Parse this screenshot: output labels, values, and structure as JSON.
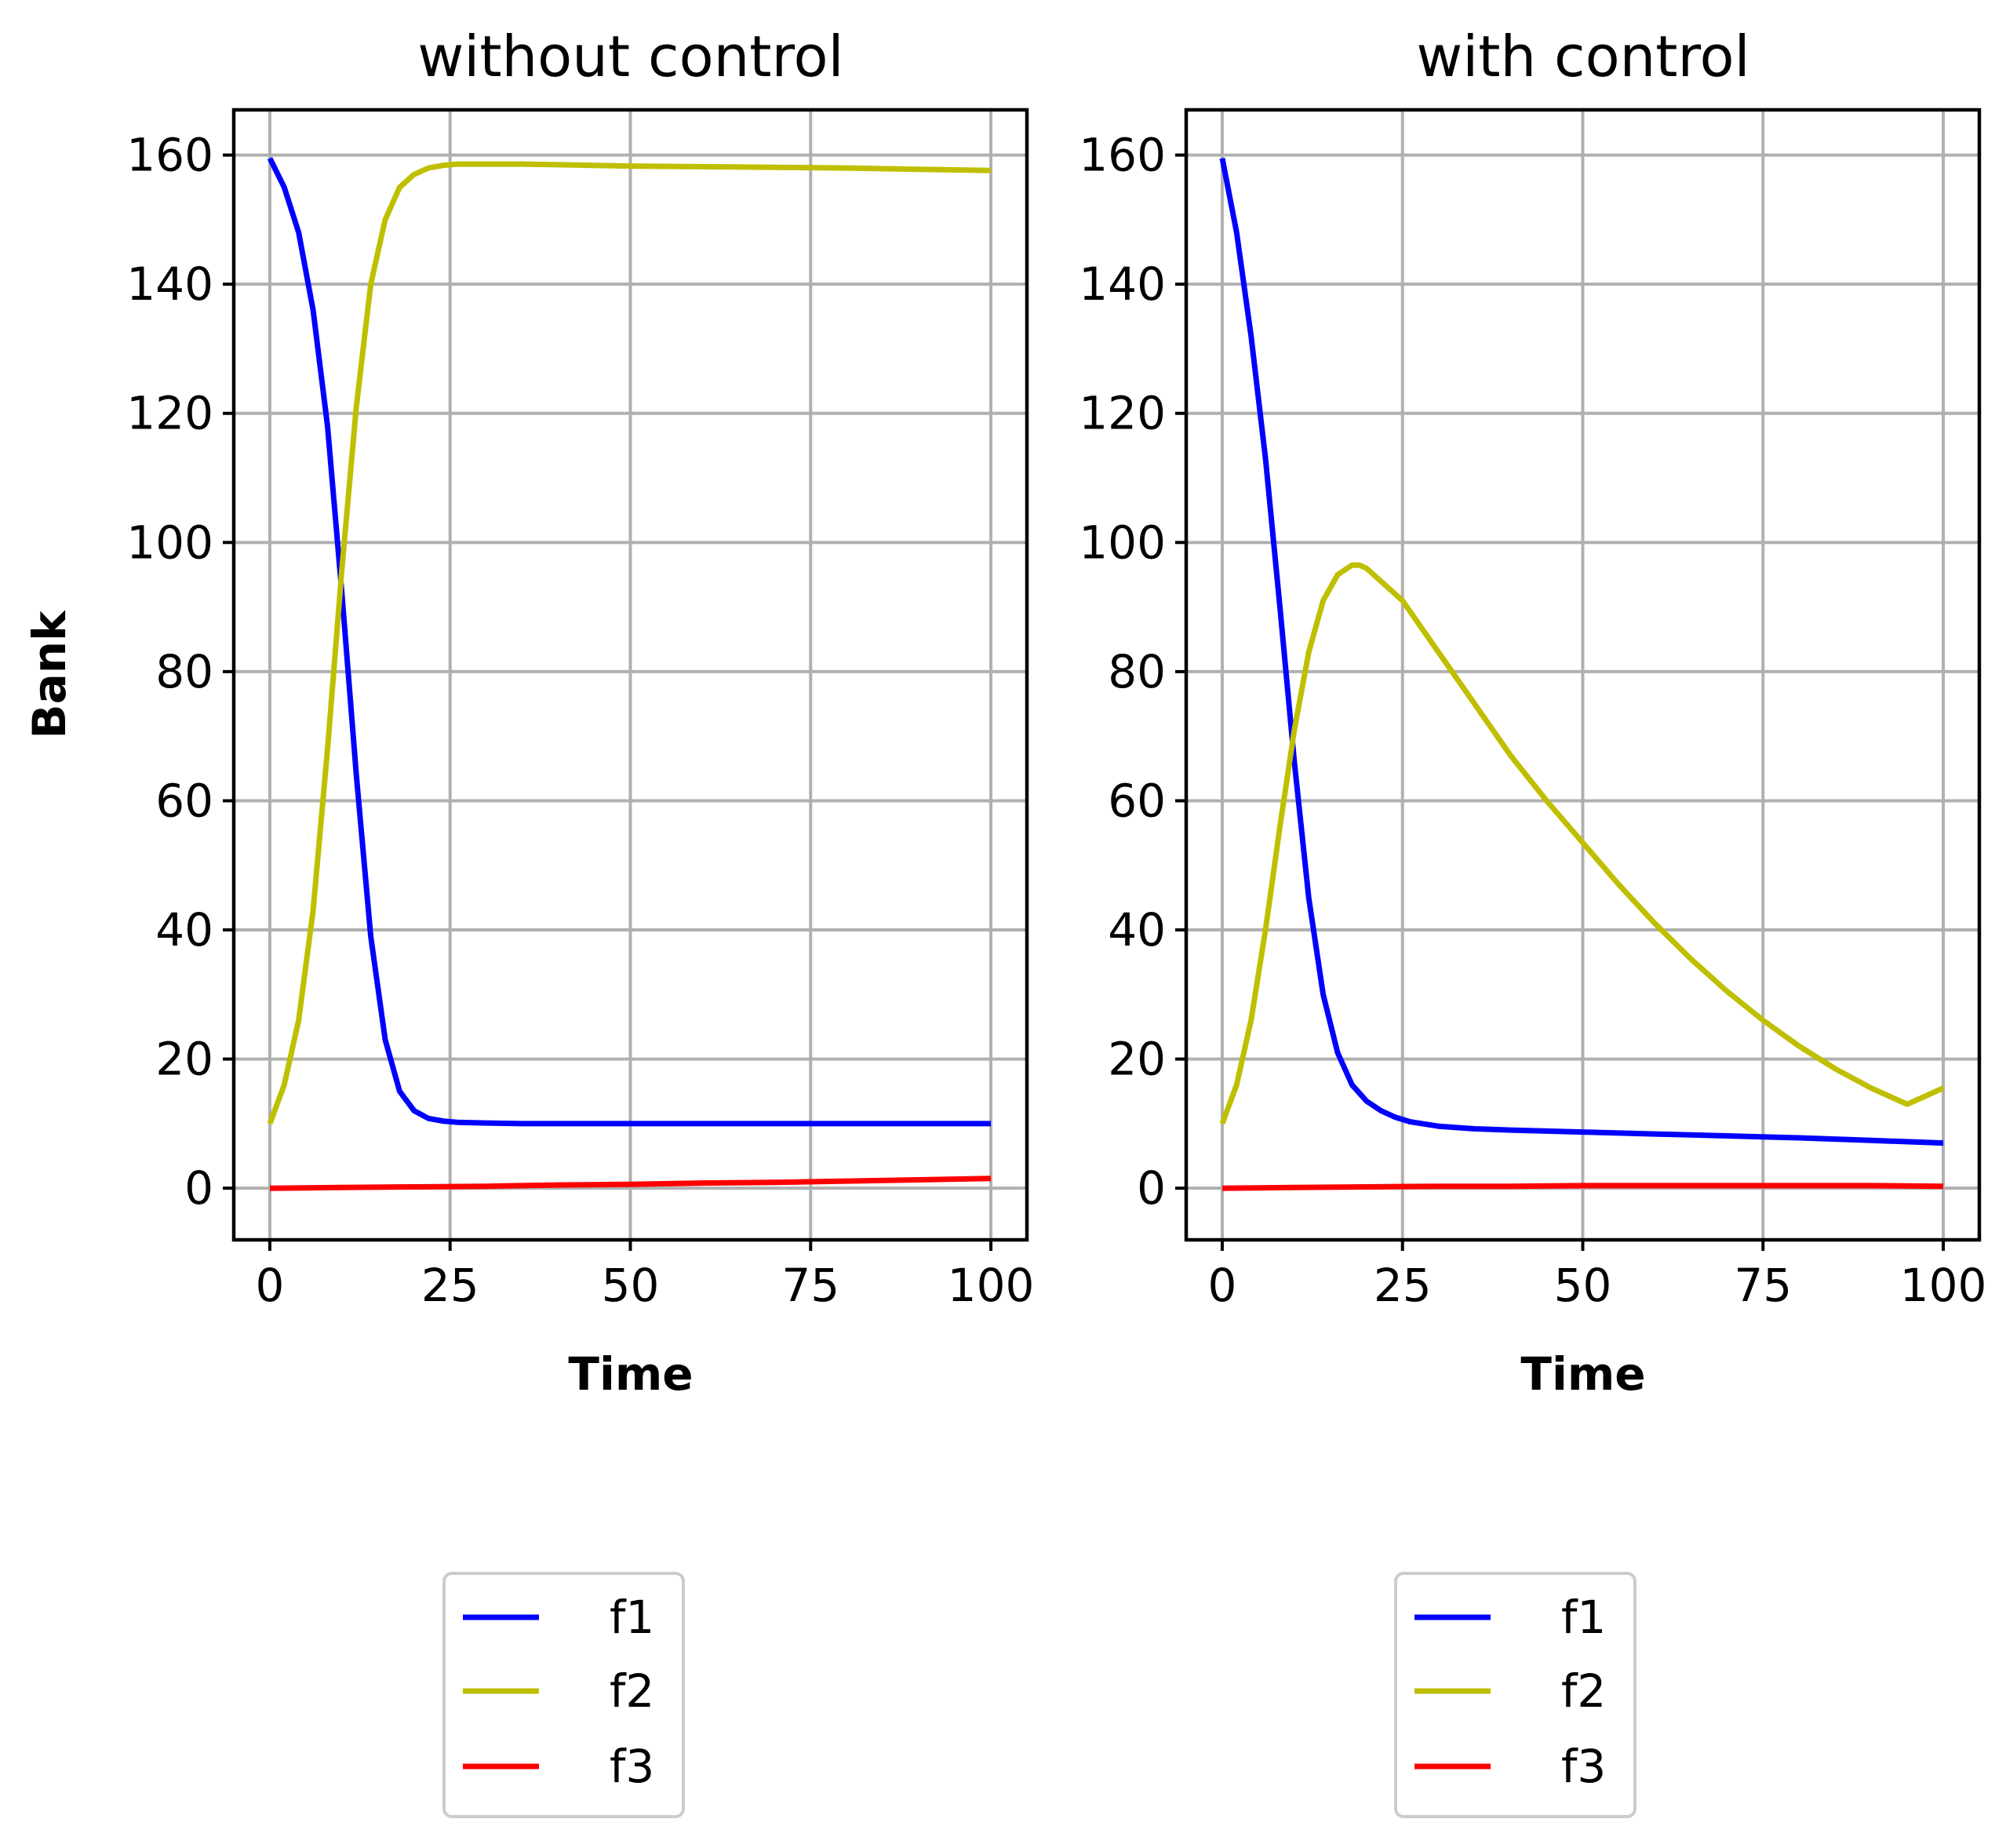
{
  "chart_data": [
    {
      "type": "line",
      "title": "without control",
      "xlabel": "Time",
      "ylabel": "Bank",
      "xlim": [
        -5,
        105
      ],
      "ylim": [
        -8,
        167
      ],
      "xticks": [
        0,
        25,
        50,
        75,
        100
      ],
      "yticks": [
        0,
        20,
        40,
        60,
        80,
        100,
        120,
        140,
        160
      ],
      "grid": true,
      "legend": {
        "placement": "below-plot",
        "entries": [
          "f1",
          "f2",
          "f3"
        ]
      },
      "series": [
        {
          "name": "f1",
          "color": "#0000ff",
          "x": [
            0,
            2,
            4,
            6,
            8,
            10,
            12,
            14,
            16,
            18,
            20,
            22,
            24,
            26,
            30,
            35,
            40,
            50,
            60,
            70,
            80,
            90,
            100
          ],
          "y": [
            159.5,
            155,
            148,
            136,
            118,
            92,
            64,
            39,
            23,
            15,
            12,
            10.8,
            10.4,
            10.2,
            10.1,
            10,
            10,
            10,
            10,
            10,
            10,
            10,
            10
          ]
        },
        {
          "name": "f2",
          "color": "#bfbf00",
          "x": [
            0,
            2,
            4,
            6,
            8,
            10,
            12,
            14,
            16,
            18,
            20,
            22,
            24,
            26,
            30,
            35,
            40,
            50,
            60,
            70,
            80,
            90,
            100
          ],
          "y": [
            10,
            16,
            26,
            43,
            68,
            96,
            121,
            140,
            150,
            155,
            157,
            158,
            158.4,
            158.6,
            158.6,
            158.6,
            158.5,
            158.3,
            158.2,
            158.1,
            158,
            157.8,
            157.6
          ]
        },
        {
          "name": "f3",
          "color": "#ff0000",
          "x": [
            0,
            10,
            20,
            30,
            40,
            50,
            60,
            70,
            80,
            90,
            100
          ],
          "y": [
            0,
            0.1,
            0.2,
            0.3,
            0.5,
            0.6,
            0.8,
            0.9,
            1.1,
            1.3,
            1.5
          ]
        }
      ]
    },
    {
      "type": "line",
      "title": "with control",
      "xlabel": "Time",
      "ylabel": "",
      "xlim": [
        -5,
        105
      ],
      "ylim": [
        -8,
        167
      ],
      "xticks": [
        0,
        25,
        50,
        75,
        100
      ],
      "yticks": [
        0,
        20,
        40,
        60,
        80,
        100,
        120,
        140,
        160
      ],
      "grid": true,
      "legend": {
        "placement": "below-plot",
        "entries": [
          "f1",
          "f2",
          "f3"
        ]
      },
      "series": [
        {
          "name": "f1",
          "color": "#0000ff",
          "x": [
            0,
            2,
            4,
            6,
            8,
            10,
            12,
            14,
            16,
            18,
            20,
            22,
            24,
            26,
            30,
            35,
            40,
            50,
            60,
            70,
            80,
            90,
            100
          ],
          "y": [
            159.5,
            148,
            132,
            113,
            90,
            66,
            45,
            30,
            21,
            16,
            13.5,
            12,
            11,
            10.3,
            9.6,
            9.2,
            9,
            8.7,
            8.4,
            8.1,
            7.8,
            7.4,
            7
          ]
        },
        {
          "name": "f2",
          "color": "#bfbf00",
          "x": [
            0,
            2,
            4,
            6,
            8,
            10,
            12,
            14,
            16,
            18,
            19,
            20,
            22,
            25,
            30,
            35,
            40,
            45,
            50,
            55,
            60,
            65,
            70,
            75,
            80,
            85,
            90,
            95,
            100
          ],
          "y": [
            10,
            16,
            26,
            40,
            56,
            71,
            83,
            91,
            95,
            96.5,
            96.5,
            96,
            94,
            91,
            83,
            75,
            67,
            60,
            53.5,
            47,
            41,
            35.5,
            30.5,
            26,
            22,
            18.5,
            15.5,
            13,
            15.5
          ]
        },
        {
          "name": "f3",
          "color": "#ff0000",
          "x": [
            0,
            10,
            20,
            30,
            40,
            50,
            60,
            70,
            80,
            90,
            100
          ],
          "y": [
            0,
            0.1,
            0.2,
            0.3,
            0.3,
            0.4,
            0.4,
            0.4,
            0.4,
            0.4,
            0.3
          ]
        }
      ]
    }
  ]
}
